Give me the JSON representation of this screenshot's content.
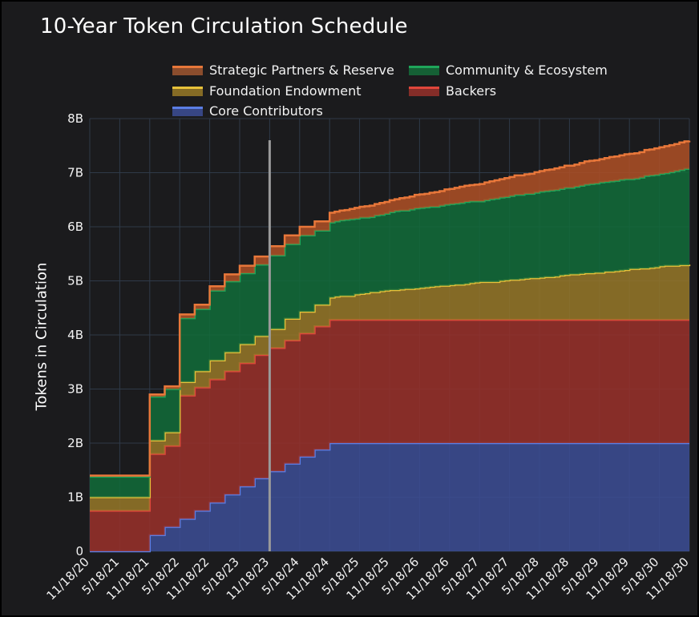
{
  "chart_data": {
    "type": "area",
    "stacked": true,
    "title": "10-Year Token Circulation Schedule",
    "xlabel": "",
    "ylabel": "Tokens in Circulation",
    "ylim": [
      0,
      8
    ],
    "y_unit": "B",
    "y_ticks": [
      "0",
      "1B",
      "2B",
      "3B",
      "4B",
      "5B",
      "6B",
      "7B",
      "8B"
    ],
    "x_tick_labels": [
      "11/18/20",
      "5/18/21",
      "11/18/21",
      "5/18/22",
      "11/18/22",
      "5/18/23",
      "11/18/23",
      "5/18/24",
      "11/18/24",
      "5/18/25",
      "11/18/25",
      "5/18/26",
      "11/18/26",
      "5/18/27",
      "11/18/27",
      "5/18/28",
      "11/18/28",
      "5/18/29",
      "11/18/29",
      "5/18/30",
      "11/18/30"
    ],
    "x_months": [
      0,
      1,
      2,
      3,
      4,
      5,
      6,
      7,
      8,
      9,
      10,
      11,
      12,
      13,
      14,
      15,
      16,
      17,
      18,
      19,
      20,
      21,
      22,
      23,
      24,
      25,
      26,
      27,
      28,
      29,
      30,
      31,
      32,
      33,
      34,
      35,
      36,
      37,
      38,
      39,
      40,
      41,
      42,
      43,
      44,
      45,
      46,
      47,
      48,
      49,
      50,
      51,
      52,
      53,
      54,
      55,
      56,
      57,
      58,
      59,
      60,
      61,
      62,
      63,
      64,
      65,
      66,
      67,
      68,
      69,
      70,
      71,
      72,
      73,
      74,
      75,
      76,
      77,
      78,
      79,
      80,
      81,
      82,
      83,
      84,
      85,
      86,
      87,
      88,
      89,
      90,
      91,
      92,
      93,
      94,
      95,
      96,
      97,
      98,
      99,
      100,
      101,
      102,
      103,
      104,
      105,
      106,
      107,
      108,
      109,
      110,
      111,
      112,
      113,
      114,
      115,
      116,
      117,
      118,
      119,
      120
    ],
    "x_range_months": [
      0,
      120
    ],
    "vertical_marker_month": 36,
    "series": [
      {
        "name": "Core Contributors",
        "color": "#5b7ee5",
        "values": [
          0.0,
          0.0,
          0.0,
          0.0,
          0.0,
          0.0,
          0.0,
          0.0,
          0.0,
          0.0,
          0.0,
          0.0,
          0.3,
          0.3,
          0.3,
          0.45,
          0.45,
          0.45,
          0.6,
          0.6,
          0.6,
          0.75,
          0.75,
          0.75,
          0.9,
          0.9,
          0.9,
          1.05,
          1.05,
          1.05,
          1.2,
          1.2,
          1.2,
          1.35,
          1.35,
          1.35,
          1.48,
          1.48,
          1.48,
          1.62,
          1.62,
          1.62,
          1.75,
          1.75,
          1.75,
          1.88,
          1.88,
          1.88,
          2.0,
          2.0,
          2.0,
          2.0,
          2.0,
          2.0,
          2.0,
          2.0,
          2.0,
          2.0,
          2.0,
          2.0,
          2.0,
          2.0,
          2.0,
          2.0,
          2.0,
          2.0,
          2.0,
          2.0,
          2.0,
          2.0,
          2.0,
          2.0,
          2.0,
          2.0,
          2.0,
          2.0,
          2.0,
          2.0,
          2.0,
          2.0,
          2.0,
          2.0,
          2.0,
          2.0,
          2.0,
          2.0,
          2.0,
          2.0,
          2.0,
          2.0,
          2.0,
          2.0,
          2.0,
          2.0,
          2.0,
          2.0,
          2.0,
          2.0,
          2.0,
          2.0,
          2.0,
          2.0,
          2.0,
          2.0,
          2.0,
          2.0,
          2.0,
          2.0,
          2.0,
          2.0,
          2.0,
          2.0,
          2.0,
          2.0,
          2.0,
          2.0,
          2.0,
          2.0,
          2.0,
          2.0,
          2.0
        ]
      },
      {
        "name": "Backers",
        "color": "#e0463b",
        "values": [
          0.75,
          0.75,
          0.75,
          0.75,
          0.75,
          0.75,
          0.75,
          0.75,
          0.75,
          0.75,
          0.75,
          0.75,
          1.5,
          1.5,
          1.5,
          1.5,
          1.5,
          1.5,
          2.28,
          2.28,
          2.28,
          2.28,
          2.28,
          2.28,
          2.28,
          2.28,
          2.28,
          2.28,
          2.28,
          2.28,
          2.28,
          2.28,
          2.28,
          2.28,
          2.28,
          2.28,
          2.28,
          2.28,
          2.28,
          2.28,
          2.28,
          2.28,
          2.28,
          2.28,
          2.28,
          2.28,
          2.28,
          2.28,
          2.28,
          2.28,
          2.28,
          2.28,
          2.28,
          2.28,
          2.28,
          2.28,
          2.28,
          2.28,
          2.28,
          2.28,
          2.28,
          2.28,
          2.28,
          2.28,
          2.28,
          2.28,
          2.28,
          2.28,
          2.28,
          2.28,
          2.28,
          2.28,
          2.28,
          2.28,
          2.28,
          2.28,
          2.28,
          2.28,
          2.28,
          2.28,
          2.28,
          2.28,
          2.28,
          2.28,
          2.28,
          2.28,
          2.28,
          2.28,
          2.28,
          2.28,
          2.28,
          2.28,
          2.28,
          2.28,
          2.28,
          2.28,
          2.28,
          2.28,
          2.28,
          2.28,
          2.28,
          2.28,
          2.28,
          2.28,
          2.28,
          2.28,
          2.28,
          2.28,
          2.28,
          2.28,
          2.28,
          2.28,
          2.28,
          2.28,
          2.28,
          2.28,
          2.28,
          2.28,
          2.28,
          2.28,
          2.28
        ]
      },
      {
        "name": "Foundation Endowment",
        "color": "#e8c23a",
        "values": [
          0.25,
          0.25,
          0.25,
          0.25,
          0.25,
          0.25,
          0.25,
          0.25,
          0.25,
          0.25,
          0.25,
          0.25,
          0.25,
          0.25,
          0.25,
          0.25,
          0.25,
          0.25,
          0.25,
          0.25,
          0.25,
          0.3,
          0.3,
          0.3,
          0.35,
          0.35,
          0.35,
          0.35,
          0.35,
          0.35,
          0.35,
          0.35,
          0.35,
          0.35,
          0.35,
          0.35,
          0.35,
          0.35,
          0.35,
          0.4,
          0.4,
          0.4,
          0.4,
          0.4,
          0.4,
          0.4,
          0.4,
          0.4,
          0.41,
          0.43,
          0.44,
          0.44,
          0.44,
          0.47,
          0.48,
          0.49,
          0.51,
          0.51,
          0.53,
          0.54,
          0.55,
          0.55,
          0.56,
          0.57,
          0.57,
          0.58,
          0.59,
          0.6,
          0.61,
          0.62,
          0.63,
          0.63,
          0.64,
          0.65,
          0.65,
          0.66,
          0.68,
          0.69,
          0.7,
          0.7,
          0.7,
          0.7,
          0.72,
          0.73,
          0.74,
          0.74,
          0.75,
          0.76,
          0.77,
          0.77,
          0.78,
          0.79,
          0.79,
          0.8,
          0.82,
          0.83,
          0.84,
          0.84,
          0.85,
          0.86,
          0.86,
          0.87,
          0.87,
          0.89,
          0.89,
          0.9,
          0.91,
          0.92,
          0.94,
          0.94,
          0.95,
          0.95,
          0.96,
          0.97,
          0.99,
          1.0,
          1.0,
          1.0,
          1.01,
          1.01,
          1.02
        ]
      },
      {
        "name": "Community & Ecosystem",
        "color": "#1fa65a",
        "values": [
          0.38,
          0.38,
          0.38,
          0.38,
          0.38,
          0.38,
          0.38,
          0.38,
          0.38,
          0.38,
          0.38,
          0.38,
          0.81,
          0.81,
          0.81,
          0.8,
          0.8,
          0.8,
          1.18,
          1.18,
          1.18,
          1.15,
          1.15,
          1.15,
          1.29,
          1.29,
          1.29,
          1.31,
          1.31,
          1.31,
          1.31,
          1.31,
          1.31,
          1.32,
          1.32,
          1.32,
          1.36,
          1.36,
          1.36,
          1.38,
          1.38,
          1.38,
          1.41,
          1.41,
          1.41,
          1.37,
          1.37,
          1.37,
          1.39,
          1.39,
          1.4,
          1.41,
          1.42,
          1.4,
          1.41,
          1.4,
          1.39,
          1.42,
          1.41,
          1.42,
          1.44,
          1.46,
          1.46,
          1.45,
          1.47,
          1.48,
          1.48,
          1.48,
          1.48,
          1.47,
          1.48,
          1.5,
          1.5,
          1.5,
          1.51,
          1.52,
          1.51,
          1.5,
          1.49,
          1.51,
          1.53,
          1.54,
          1.54,
          1.54,
          1.55,
          1.57,
          1.56,
          1.57,
          1.56,
          1.58,
          1.59,
          1.59,
          1.6,
          1.6,
          1.6,
          1.61,
          1.6,
          1.62,
          1.63,
          1.64,
          1.65,
          1.65,
          1.67,
          1.66,
          1.67,
          1.67,
          1.68,
          1.68,
          1.66,
          1.67,
          1.68,
          1.71,
          1.71,
          1.71,
          1.71,
          1.71,
          1.73,
          1.75,
          1.76,
          1.78,
          1.77
        ]
      },
      {
        "name": "Strategic Partners & Reserve",
        "color": "#e8773a",
        "values": [
          0.02,
          0.02,
          0.02,
          0.02,
          0.02,
          0.02,
          0.02,
          0.02,
          0.02,
          0.02,
          0.02,
          0.02,
          0.04,
          0.04,
          0.04,
          0.05,
          0.05,
          0.05,
          0.07,
          0.07,
          0.07,
          0.08,
          0.08,
          0.08,
          0.08,
          0.08,
          0.08,
          0.13,
          0.13,
          0.13,
          0.14,
          0.14,
          0.14,
          0.15,
          0.15,
          0.15,
          0.17,
          0.17,
          0.17,
          0.16,
          0.16,
          0.16,
          0.16,
          0.16,
          0.16,
          0.17,
          0.17,
          0.17,
          0.18,
          0.18,
          0.18,
          0.18,
          0.19,
          0.2,
          0.2,
          0.21,
          0.21,
          0.21,
          0.22,
          0.22,
          0.22,
          0.22,
          0.23,
          0.24,
          0.24,
          0.25,
          0.25,
          0.25,
          0.26,
          0.27,
          0.27,
          0.28,
          0.28,
          0.29,
          0.3,
          0.3,
          0.3,
          0.31,
          0.32,
          0.33,
          0.33,
          0.34,
          0.34,
          0.35,
          0.35,
          0.36,
          0.36,
          0.36,
          0.37,
          0.38,
          0.38,
          0.39,
          0.39,
          0.4,
          0.4,
          0.41,
          0.41,
          0.41,
          0.42,
          0.43,
          0.43,
          0.43,
          0.43,
          0.44,
          0.45,
          0.45,
          0.45,
          0.46,
          0.47,
          0.47,
          0.47,
          0.48,
          0.48,
          0.49,
          0.49,
          0.5,
          0.5,
          0.5,
          0.51,
          0.51,
          0.52
        ]
      }
    ],
    "legend": {
      "placement": "top",
      "entries": [
        {
          "label": "Strategic Partners & Reserve",
          "color": "#e8773a"
        },
        {
          "label": "Community & Ecosystem",
          "color": "#1fa65a"
        },
        {
          "label": "Foundation Endowment",
          "color": "#e8c23a"
        },
        {
          "label": "Backers",
          "color": "#e0463b"
        },
        {
          "label": "Core Contributors",
          "color": "#5b7ee5"
        }
      ]
    },
    "grid": true,
    "background": "#1b1b1d",
    "grid_color": "#2f3a48",
    "marker_color": "#9a9a9a"
  }
}
